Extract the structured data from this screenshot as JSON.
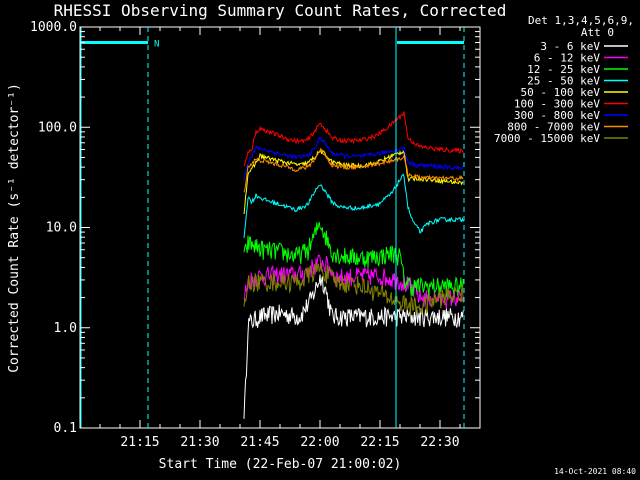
{
  "chart_data": {
    "type": "line",
    "title": "RHESSI Observing Summary Count Rates, Corrected",
    "xlabel": "Start Time (22-Feb-07 21:00:02)",
    "ylabel": "Corrected Count Rate (s⁻¹ detector⁻¹)",
    "x_range_minutes": [
      0,
      100
    ],
    "x_ticks": [
      {
        "t": 15,
        "label": "21:15"
      },
      {
        "t": 30,
        "label": "21:30"
      },
      {
        "t": 45,
        "label": "21:45"
      },
      {
        "t": 60,
        "label": "22:00"
      },
      {
        "t": 75,
        "label": "22:15"
      },
      {
        "t": 90,
        "label": "22:30"
      }
    ],
    "y_scale": "log",
    "ylim": [
      0.1,
      1000
    ],
    "y_ticks": [
      {
        "v": 0.1,
        "label": "0.1"
      },
      {
        "v": 1,
        "label": "1.0"
      },
      {
        "v": 10,
        "label": "10.0"
      },
      {
        "v": 100,
        "label": "100.0"
      },
      {
        "v": 1000,
        "label": "1000.0"
      }
    ],
    "legend_header": [
      "Det 1,3,4,5,6,9,",
      "Att 0"
    ],
    "legend_placement": "right, outside plot",
    "series": [
      {
        "name": "3 - 6 keV",
        "color": "#ffffff",
        "start": 41,
        "end": 96,
        "points": [
          [
            41,
            0.15
          ],
          [
            41.3,
            0.2
          ],
          [
            42,
            1.1
          ],
          [
            45,
            1.3
          ],
          [
            50,
            1.4
          ],
          [
            55,
            1.3
          ],
          [
            58,
            2.0
          ],
          [
            60,
            3.2
          ],
          [
            61,
            2.8
          ],
          [
            63,
            1.3
          ],
          [
            70,
            1.3
          ],
          [
            80,
            1.3
          ],
          [
            88,
            1.3
          ],
          [
            95,
            1.3
          ]
        ]
      },
      {
        "name": "6 - 12 keV",
        "color": "#ff00ff",
        "start": 41,
        "end": 96,
        "points": [
          [
            41,
            2.0
          ],
          [
            42,
            3.0
          ],
          [
            45,
            3.3
          ],
          [
            50,
            3.4
          ],
          [
            55,
            3.4
          ],
          [
            58,
            4.0
          ],
          [
            60,
            4.6
          ],
          [
            62,
            4.2
          ],
          [
            64,
            3.2
          ],
          [
            70,
            3.3
          ],
          [
            75,
            3.3
          ],
          [
            80,
            3.0
          ],
          [
            83,
            2.5
          ],
          [
            85,
            2.0
          ],
          [
            90,
            2.0
          ],
          [
            95,
            2.0
          ]
        ]
      },
      {
        "name": "12 - 25 keV",
        "color": "#00ff00",
        "start": 41,
        "end": 96,
        "points": [
          [
            41,
            5.0
          ],
          [
            42,
            7.0
          ],
          [
            44,
            6.5
          ],
          [
            46,
            6.0
          ],
          [
            50,
            5.8
          ],
          [
            54,
            5.2
          ],
          [
            57,
            6.0
          ],
          [
            59,
            9.0
          ],
          [
            60,
            11.5
          ],
          [
            61,
            9.0
          ],
          [
            63,
            5.8
          ],
          [
            65,
            5.3
          ],
          [
            70,
            5.0
          ],
          [
            75,
            5.2
          ],
          [
            78,
            5.6
          ],
          [
            80,
            5.2
          ],
          [
            81,
            3.0
          ],
          [
            83,
            2.6
          ],
          [
            85,
            2.6
          ],
          [
            90,
            2.6
          ],
          [
            95,
            2.6
          ]
        ]
      },
      {
        "name": "25 - 50 keV",
        "color": "#00ffff",
        "start": 41,
        "end": 96,
        "points": [
          [
            41,
            8.0
          ],
          [
            42,
            20
          ],
          [
            43,
            18
          ],
          [
            44,
            21
          ],
          [
            46,
            19
          ],
          [
            50,
            17
          ],
          [
            54,
            15
          ],
          [
            57,
            17
          ],
          [
            59,
            24
          ],
          [
            60,
            27
          ],
          [
            61,
            24
          ],
          [
            63,
            18
          ],
          [
            65,
            16
          ],
          [
            70,
            15.5
          ],
          [
            75,
            17.5
          ],
          [
            78,
            22
          ],
          [
            80,
            30
          ],
          [
            81,
            33
          ],
          [
            82,
            16
          ],
          [
            83,
            12
          ],
          [
            85,
            9
          ],
          [
            87,
            11
          ],
          [
            90,
            12
          ],
          [
            95,
            12
          ]
        ]
      },
      {
        "name": "50 - 100 keV",
        "color": "#ffff00",
        "start": 41,
        "end": 96,
        "points": [
          [
            41,
            14
          ],
          [
            42,
            35
          ],
          [
            43,
            38
          ],
          [
            45,
            52
          ],
          [
            48,
            48
          ],
          [
            52,
            44
          ],
          [
            55,
            42
          ],
          [
            57,
            44
          ],
          [
            59,
            52
          ],
          [
            60,
            58
          ],
          [
            61,
            55
          ],
          [
            63,
            45
          ],
          [
            66,
            42
          ],
          [
            70,
            41
          ],
          [
            74,
            44
          ],
          [
            78,
            52
          ],
          [
            81,
            58
          ],
          [
            82,
            30
          ],
          [
            84,
            31
          ],
          [
            88,
            30
          ],
          [
            95,
            28
          ]
        ]
      },
      {
        "name": "100 - 300 keV",
        "color": "#ff0000",
        "start": 41,
        "end": 96,
        "points": [
          [
            41,
            40
          ],
          [
            42,
            55
          ],
          [
            43,
            62
          ],
          [
            44,
            90
          ],
          [
            45,
            97
          ],
          [
            48,
            88
          ],
          [
            52,
            76
          ],
          [
            55,
            72
          ],
          [
            57,
            75
          ],
          [
            59,
            95
          ],
          [
            60,
            110
          ],
          [
            61,
            100
          ],
          [
            63,
            78
          ],
          [
            66,
            73
          ],
          [
            70,
            74
          ],
          [
            74,
            82
          ],
          [
            77,
            100
          ],
          [
            80,
            128
          ],
          [
            81,
            140
          ],
          [
            82,
            78
          ],
          [
            83,
            72
          ],
          [
            85,
            64
          ],
          [
            90,
            60
          ],
          [
            95,
            58
          ]
        ]
      },
      {
        "name": "300 - 800 keV",
        "color": "#0000ff",
        "start": 41,
        "end": 96,
        "points": [
          [
            41,
            30
          ],
          [
            42,
            45
          ],
          [
            44,
            62
          ],
          [
            46,
            60
          ],
          [
            50,
            54
          ],
          [
            54,
            50
          ],
          [
            57,
            52
          ],
          [
            59,
            64
          ],
          [
            60,
            80
          ],
          [
            61,
            72
          ],
          [
            63,
            55
          ],
          [
            66,
            52
          ],
          [
            70,
            51
          ],
          [
            74,
            54
          ],
          [
            78,
            58
          ],
          [
            81,
            62
          ],
          [
            82,
            45
          ],
          [
            84,
            42
          ],
          [
            88,
            41
          ],
          [
            95,
            39
          ]
        ]
      },
      {
        "name": "800 - 7000 keV",
        "color": "#ff8c00",
        "start": 41,
        "end": 96,
        "points": [
          [
            41,
            22
          ],
          [
            42,
            40
          ],
          [
            44,
            48
          ],
          [
            46,
            46
          ],
          [
            50,
            42
          ],
          [
            54,
            38
          ],
          [
            57,
            40
          ],
          [
            59,
            50
          ],
          [
            60,
            60
          ],
          [
            61,
            55
          ],
          [
            63,
            42
          ],
          [
            66,
            40
          ],
          [
            70,
            40
          ],
          [
            74,
            43
          ],
          [
            78,
            47
          ],
          [
            81,
            50
          ],
          [
            82,
            34
          ],
          [
            84,
            32
          ],
          [
            88,
            31
          ],
          [
            95,
            31
          ]
        ]
      },
      {
        "name": "7000 - 15000 keV",
        "color": "#808000",
        "start": 41,
        "end": 96,
        "points": [
          [
            41,
            1.5
          ],
          [
            42,
            2.8
          ],
          [
            45,
            2.9
          ],
          [
            50,
            2.9
          ],
          [
            55,
            2.9
          ],
          [
            58,
            3.6
          ],
          [
            60,
            3.9
          ],
          [
            62,
            3.4
          ],
          [
            64,
            2.9
          ],
          [
            70,
            2.7
          ],
          [
            75,
            2.2
          ],
          [
            80,
            1.8
          ],
          [
            85,
            1.6
          ],
          [
            90,
            2.0
          ],
          [
            95,
            2.2
          ]
        ]
      }
    ],
    "annotations": {
      "night_label": "N",
      "night_level": 700,
      "night_intervals": [
        [
          0,
          17
        ],
        [
          79,
          96
        ]
      ],
      "saa_lines": [
        79
      ],
      "dashed_lines": [
        17,
        96
      ]
    },
    "timestamp": "14-Oct-2021 08:40"
  },
  "colors": {
    "background": "#000000",
    "foreground": "#ffffff",
    "night": "#00ffff"
  }
}
